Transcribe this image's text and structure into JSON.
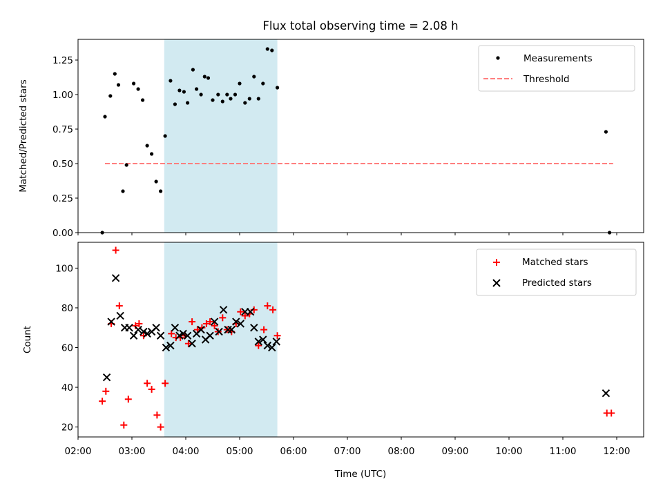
{
  "figure_title": "Flux total observing time = 2.08 h",
  "colors": {
    "measurement": "#000000",
    "threshold": "#ff7f7f",
    "matched": "#ff0000",
    "predicted": "#000000",
    "highlight": "#add8e6"
  },
  "chart_data": [
    {
      "type": "scatter",
      "title": "Flux total observing time = 2.08 h",
      "xlabel": "",
      "ylabel": "Matched/Predicted stars",
      "xlim": [
        "02:00",
        "12:30"
      ],
      "ylim": [
        0.0,
        1.4
      ],
      "yticks": [
        "0.00",
        "0.25",
        "0.50",
        "0.75",
        "1.00",
        "1.25"
      ],
      "grid": false,
      "legend_position": "upper right",
      "highlight_span": {
        "start": "03:36",
        "end": "05:42"
      },
      "threshold": {
        "x_start": "02:30",
        "x_end": "11:56",
        "y": 0.5
      },
      "series": [
        {
          "name": "Measurements",
          "marker": "dot",
          "points": [
            [
              "02:27",
              0.0
            ],
            [
              "02:30",
              0.84
            ],
            [
              "02:36",
              0.99
            ],
            [
              "02:41",
              1.15
            ],
            [
              "02:45",
              1.07
            ],
            [
              "02:50",
              0.3
            ],
            [
              "02:54",
              0.49
            ],
            [
              "03:02",
              1.08
            ],
            [
              "03:07",
              1.04
            ],
            [
              "03:12",
              0.96
            ],
            [
              "03:17",
              0.63
            ],
            [
              "03:22",
              0.57
            ],
            [
              "03:27",
              0.37
            ],
            [
              "03:32",
              0.3
            ],
            [
              "03:37",
              0.7
            ],
            [
              "03:43",
              1.1
            ],
            [
              "03:48",
              0.93
            ],
            [
              "03:53",
              1.03
            ],
            [
              "03:58",
              1.02
            ],
            [
              "04:02",
              0.94
            ],
            [
              "04:08",
              1.18
            ],
            [
              "04:12",
              1.04
            ],
            [
              "04:17",
              1.0
            ],
            [
              "04:21",
              1.13
            ],
            [
              "04:25",
              1.12
            ],
            [
              "04:30",
              0.96
            ],
            [
              "04:36",
              1.0
            ],
            [
              "04:41",
              0.95
            ],
            [
              "04:46",
              1.0
            ],
            [
              "04:50",
              0.97
            ],
            [
              "04:55",
              1.0
            ],
            [
              "05:00",
              1.08
            ],
            [
              "05:06",
              0.94
            ],
            [
              "05:11",
              0.97
            ],
            [
              "05:16",
              1.13
            ],
            [
              "05:21",
              0.97
            ],
            [
              "05:26",
              1.08
            ],
            [
              "05:31",
              1.33
            ],
            [
              "05:36",
              1.32
            ],
            [
              "05:42",
              1.05
            ],
            [
              "11:48",
              0.73
            ],
            [
              "11:52",
              0.0
            ]
          ]
        },
        {
          "name": "Threshold",
          "style": "dashed"
        }
      ]
    },
    {
      "type": "scatter",
      "title": "",
      "xlabel": "Time (UTC)",
      "ylabel": "Count",
      "xlim": [
        "02:00",
        "12:30"
      ],
      "ylim": [
        15,
        113
      ],
      "yticks": [
        "20",
        "40",
        "60",
        "80",
        "100"
      ],
      "xticks": [
        "02:00",
        "03:00",
        "04:00",
        "05:00",
        "06:00",
        "07:00",
        "08:00",
        "09:00",
        "10:00",
        "11:00",
        "12:00"
      ],
      "grid": false,
      "legend_position": "upper right",
      "highlight_span": {
        "start": "03:36",
        "end": "05:42"
      },
      "series": [
        {
          "name": "Matched stars",
          "marker": "plus",
          "points": [
            [
              "02:27",
              33
            ],
            [
              "02:31",
              38
            ],
            [
              "02:37",
              72
            ],
            [
              "02:42",
              109
            ],
            [
              "02:46",
              81
            ],
            [
              "02:51",
              21
            ],
            [
              "02:56",
              34
            ],
            [
              "03:04",
              71
            ],
            [
              "03:08",
              72
            ],
            [
              "03:13",
              66
            ],
            [
              "03:17",
              42
            ],
            [
              "03:22",
              39
            ],
            [
              "03:28",
              26
            ],
            [
              "03:32",
              20
            ],
            [
              "03:37",
              42
            ],
            [
              "03:44",
              67
            ],
            [
              "03:49",
              65
            ],
            [
              "03:54",
              65
            ],
            [
              "03:59",
              66
            ],
            [
              "04:03",
              62
            ],
            [
              "04:07",
              73
            ],
            [
              "04:13",
              69
            ],
            [
              "04:18",
              70
            ],
            [
              "04:23",
              72
            ],
            [
              "04:27",
              73
            ],
            [
              "04:32",
              71
            ],
            [
              "04:36",
              68
            ],
            [
              "04:41",
              75
            ],
            [
              "04:46",
              69
            ],
            [
              "04:51",
              68
            ],
            [
              "04:56",
              72
            ],
            [
              "05:01",
              78
            ],
            [
              "05:06",
              76
            ],
            [
              "05:11",
              77
            ],
            [
              "05:16",
              79
            ],
            [
              "05:21",
              61
            ],
            [
              "05:27",
              69
            ],
            [
              "05:31",
              81
            ],
            [
              "05:37",
              79
            ],
            [
              "05:42",
              66
            ],
            [
              "11:49",
              27
            ],
            [
              "11:54",
              27
            ]
          ]
        },
        {
          "name": "Predicted stars",
          "marker": "x",
          "points": [
            [
              "02:32",
              45
            ],
            [
              "02:37",
              73
            ],
            [
              "02:42",
              95
            ],
            [
              "02:47",
              76
            ],
            [
              "02:52",
              70
            ],
            [
              "02:57",
              70
            ],
            [
              "03:02",
              66
            ],
            [
              "03:07",
              69
            ],
            [
              "03:13",
              68
            ],
            [
              "03:17",
              67
            ],
            [
              "03:22",
              68
            ],
            [
              "03:27",
              70
            ],
            [
              "03:32",
              66
            ],
            [
              "03:38",
              60
            ],
            [
              "03:43",
              61
            ],
            [
              "03:48",
              70
            ],
            [
              "03:53",
              66
            ],
            [
              "03:57",
              67
            ],
            [
              "04:02",
              66
            ],
            [
              "04:07",
              62
            ],
            [
              "04:12",
              67
            ],
            [
              "04:17",
              69
            ],
            [
              "04:22",
              64
            ],
            [
              "04:27",
              66
            ],
            [
              "04:32",
              73
            ],
            [
              "04:37",
              68
            ],
            [
              "04:42",
              79
            ],
            [
              "04:47",
              69
            ],
            [
              "04:51",
              69
            ],
            [
              "04:56",
              73
            ],
            [
              "05:01",
              72
            ],
            [
              "05:06",
              78
            ],
            [
              "05:12",
              78
            ],
            [
              "05:16",
              70
            ],
            [
              "05:21",
              63
            ],
            [
              "05:26",
              64
            ],
            [
              "05:31",
              61
            ],
            [
              "05:36",
              60
            ],
            [
              "05:41",
              63
            ],
            [
              "11:48",
              37
            ]
          ]
        }
      ]
    }
  ]
}
